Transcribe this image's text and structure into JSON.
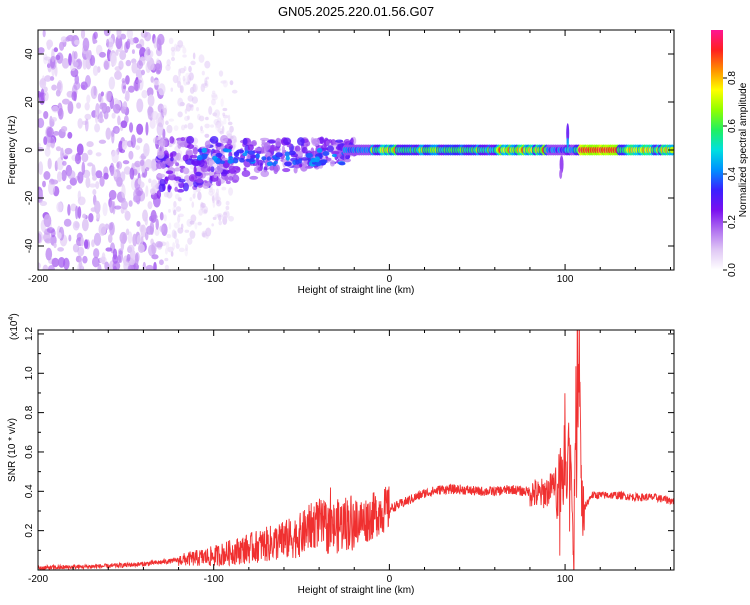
{
  "figure": {
    "title": "GN05.2025.220.01.56.G07"
  },
  "chart_data": [
    {
      "type": "heatmap",
      "xlabel": "Height of straight line (km)",
      "ylabel": "Frequency (Hz)",
      "xlim": [
        -200,
        162
      ],
      "ylim": [
        -50,
        50
      ],
      "x_ticks": [
        -200,
        -100,
        0,
        100
      ],
      "y_ticks": [
        -40,
        -20,
        0,
        20,
        40
      ],
      "colorbar": {
        "label": "Normalized spectral amplitude",
        "range": [
          0,
          1
        ],
        "ticks": [
          0.0,
          0.2,
          0.4,
          0.6,
          0.8
        ],
        "tick_labels": [
          "0.0",
          "0.2",
          "0.4",
          "0.6",
          "0.8"
        ],
        "colors": [
          "#ffffff",
          "#e0c8f5",
          "#b070f0",
          "#7a10f0",
          "#3a20ff",
          "#0090ff",
          "#00e0e0",
          "#20f060",
          "#90ff00",
          "#ffff00",
          "#ff9000",
          "#ff2020",
          "#ff1493"
        ]
      }
    },
    {
      "type": "line",
      "xlabel": "Height of straight line (km)",
      "ylabel": "SNR (10 * v/v)",
      "y_multiplier": "(x10",
      "y_multiplier_exp": "4",
      "y_multiplier_close": ")",
      "xlim": [
        -200,
        162
      ],
      "ylim": [
        0,
        1.22
      ],
      "x_ticks": [
        -200,
        -100,
        0,
        100
      ],
      "y_ticks": [
        0.2,
        0.4,
        0.6,
        0.8,
        1.0,
        1.2
      ],
      "y_tick_labels": [
        "0.2",
        "0.4",
        "0.6",
        "0.8",
        "1.0",
        "1.2"
      ],
      "line_color": "#f03030",
      "series": [
        {
          "x": [
            -200,
            -180,
            -160,
            -140,
            -120,
            -100,
            -90,
            -80,
            -70,
            -60,
            -50,
            -45,
            -40,
            -35,
            -30,
            -25,
            -20,
            -15,
            -10,
            -5,
            0,
            5,
            10,
            15,
            20,
            25,
            30,
            40,
            50,
            60,
            70,
            75,
            80,
            85,
            90,
            95,
            98,
            100,
            102,
            104,
            105,
            106,
            107,
            108,
            109,
            110,
            115,
            120,
            130,
            140,
            150,
            162
          ],
          "y": [
            0.01,
            0.015,
            0.02,
            0.03,
            0.05,
            0.07,
            0.09,
            0.11,
            0.13,
            0.15,
            0.18,
            0.22,
            0.24,
            0.21,
            0.22,
            0.24,
            0.25,
            0.25,
            0.27,
            0.3,
            0.31,
            0.33,
            0.35,
            0.37,
            0.39,
            0.4,
            0.41,
            0.41,
            0.4,
            0.4,
            0.41,
            0.4,
            0.4,
            0.38,
            0.4,
            0.45,
            0.5,
            0.55,
            0.6,
            0.5,
            0.1,
            0.7,
            0.3,
            1.22,
            0.5,
            0.3,
            0.38,
            0.38,
            0.38,
            0.37,
            0.37,
            0.35
          ]
        }
      ]
    }
  ]
}
